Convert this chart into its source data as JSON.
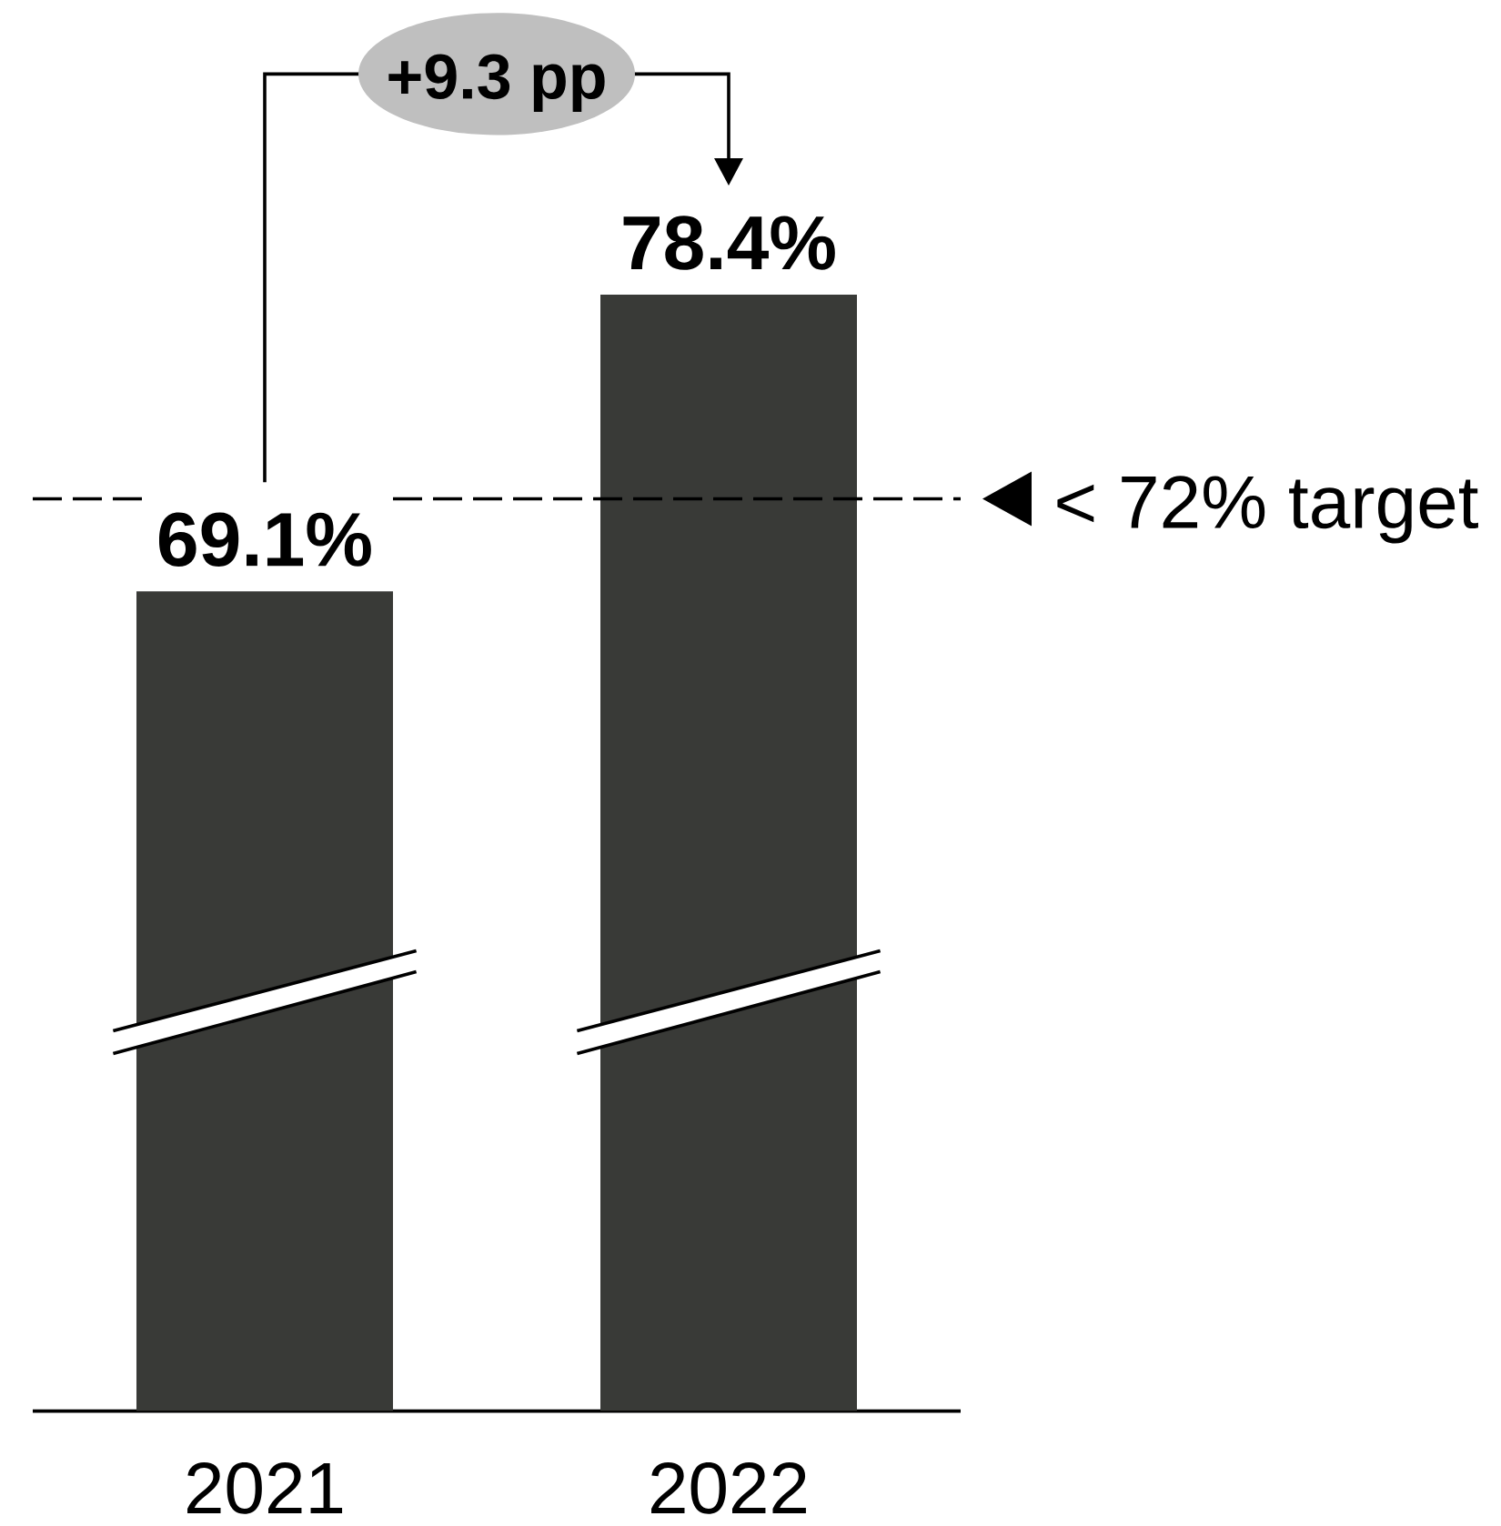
{
  "chart_data": {
    "type": "bar",
    "categories": [
      "2021",
      "2022"
    ],
    "values": [
      69.1,
      78.4
    ],
    "color": "#393a37",
    "value_labels": [
      "69.1%",
      "78.4%"
    ],
    "ylim": [
      43.4,
      78.4
    ],
    "tick_labels": "x",
    "ref_lines": [
      {
        "axis": "y",
        "value": 72,
        "label": "< 72% target",
        "color": "#000000",
        "line_style": "dashed"
      }
    ],
    "annotations": [
      "+9.3 pp"
    ]
  }
}
